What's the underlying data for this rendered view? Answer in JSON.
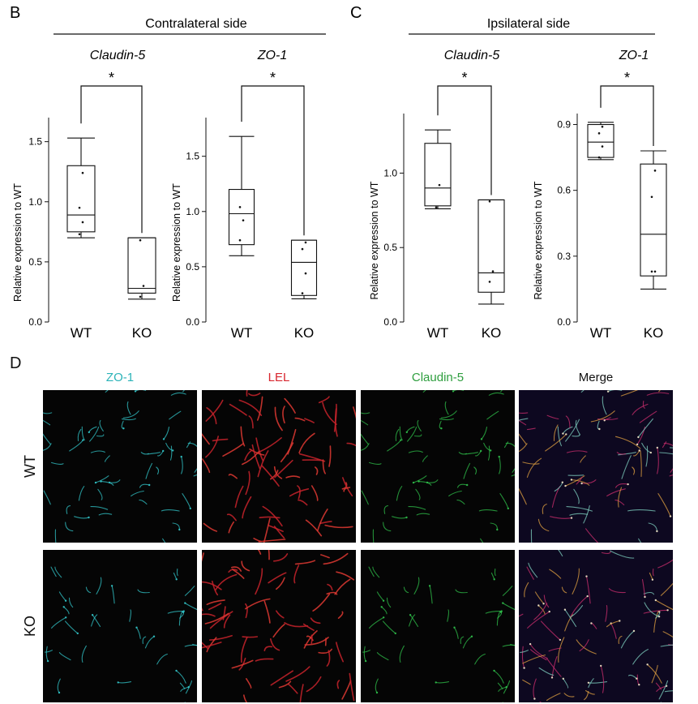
{
  "panels": {
    "B": {
      "letter": "B",
      "group_title": "Contralateral side"
    },
    "C": {
      "letter": "C",
      "group_title": "Ipsilateral side"
    },
    "D": {
      "letter": "D",
      "columns": [
        {
          "label": "ZO-1",
          "color": "#2bb3b8"
        },
        {
          "label": "LEL",
          "color": "#d8262e"
        },
        {
          "label": "Claudin-5",
          "color": "#2e9e3e"
        },
        {
          "label": "Merge",
          "color": "#111111"
        }
      ],
      "rows": [
        "WT",
        "KO"
      ]
    }
  },
  "chart_data": [
    {
      "type": "box",
      "panel": "B",
      "title": "Claudin-5",
      "ylabel": "Relative expression to WT",
      "ylim": [
        0,
        1.7
      ],
      "yticks": [
        0.0,
        0.5,
        1.0,
        1.5
      ],
      "ytick_labels": [
        "0.0",
        "0.5",
        "1.0",
        "1.5"
      ],
      "categories": [
        "WT",
        "KO"
      ],
      "boxes": [
        {
          "min": 0.7,
          "q1": 0.75,
          "median": 0.89,
          "q3": 1.3,
          "max": 1.53,
          "points": [
            0.73,
            0.83,
            0.95,
            1.24
          ]
        },
        {
          "min": 0.19,
          "q1": 0.24,
          "median": 0.28,
          "q3": 0.7,
          "max": 0.7,
          "points": [
            0.21,
            0.3,
            0.68
          ]
        }
      ],
      "significance": "*"
    },
    {
      "type": "box",
      "panel": "B",
      "title": "ZO-1",
      "ylabel": "Relative expression to WT",
      "ylim": [
        0,
        1.85
      ],
      "yticks": [
        0.0,
        0.5,
        1.0,
        1.5
      ],
      "ytick_labels": [
        "0.0",
        "0.5",
        "1.0",
        "1.5"
      ],
      "categories": [
        "WT",
        "KO"
      ],
      "boxes": [
        {
          "min": 0.6,
          "q1": 0.7,
          "median": 0.98,
          "q3": 1.2,
          "max": 1.68,
          "points": [
            0.74,
            0.92,
            1.04
          ]
        },
        {
          "min": 0.21,
          "q1": 0.24,
          "median": 0.54,
          "q3": 0.74,
          "max": 0.74,
          "points": [
            0.26,
            0.44,
            0.66,
            0.72
          ]
        }
      ],
      "significance": "*"
    },
    {
      "type": "box",
      "panel": "C",
      "title": "Claudin-5",
      "ylabel": "Relative expression to WT",
      "ylim": [
        0,
        1.4
      ],
      "yticks": [
        0.0,
        0.5,
        1.0
      ],
      "ytick_labels": [
        "0.0",
        "0.5",
        "1.0"
      ],
      "categories": [
        "WT",
        "KO"
      ],
      "boxes": [
        {
          "min": 0.76,
          "q1": 0.78,
          "median": 0.9,
          "q3": 1.2,
          "max": 1.29,
          "points": [
            0.77,
            0.92
          ]
        },
        {
          "min": 0.12,
          "q1": 0.2,
          "median": 0.33,
          "q3": 0.82,
          "max": 0.82,
          "points": [
            0.27,
            0.34,
            0.81
          ]
        }
      ],
      "significance": "*"
    },
    {
      "type": "box",
      "panel": "C",
      "title": "ZO-1",
      "ylabel": "Relative expression to WT",
      "ylim": [
        0,
        0.95
      ],
      "yticks": [
        0.0,
        0.3,
        0.6,
        0.9
      ],
      "ytick_labels": [
        "0.0",
        "0.3",
        "0.6",
        "0.9"
      ],
      "categories": [
        "WT",
        "KO"
      ],
      "boxes": [
        {
          "min": 0.74,
          "q1": 0.75,
          "median": 0.82,
          "q3": 0.9,
          "max": 0.91,
          "points": [
            0.75,
            0.8,
            0.86,
            0.89
          ]
        },
        {
          "min": 0.15,
          "q1": 0.21,
          "median": 0.4,
          "q3": 0.72,
          "max": 0.78,
          "points": [
            0.23,
            0.23,
            0.57,
            0.69
          ]
        }
      ],
      "significance": "*"
    }
  ]
}
